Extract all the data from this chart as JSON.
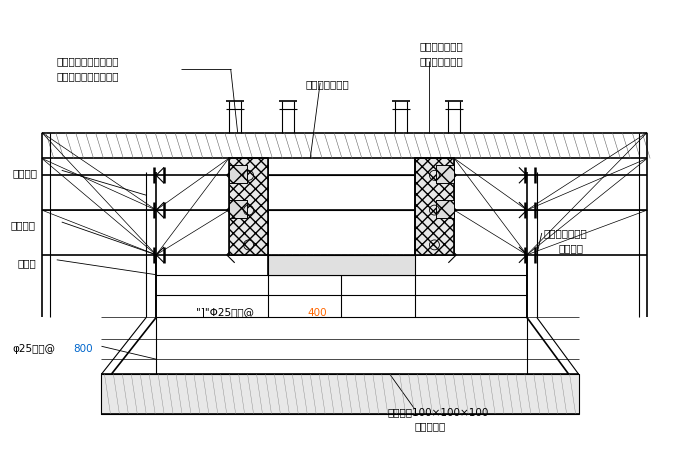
{
  "bg_color": "#ffffff",
  "line_color": "#000000",
  "fig_w": 6.89,
  "fig_h": 4.54,
  "dpi": 100,
  "labels": {
    "top_left_1": "加焊斜撑筋沿吊模周边",
    "top_left_2": "钢筋网交角节点均点焊",
    "top_mid": "成型框模、带底",
    "top_right_1": "混凝土浇筑至混",
    "top_right_2": "凝土管置换拔出",
    "left_1": "交角焊牢",
    "left_2": "螺纹钢筋",
    "left_3": "止水片",
    "right_1": "胶合板上开气孔",
    "right_2": "以便振捣",
    "bot_left_1": "φ25撑筋@",
    "bot_left_num": "800",
    "bot_right_1": "撑筋垫块100×100×100",
    "bot_right_2": "间距同撑筋",
    "inner_1": "\"]\"Φ25撑筋@",
    "inner_num": "400"
  },
  "colors": {
    "orange": "#ff6600",
    "blue": "#0066cc",
    "black": "#000000",
    "hatch_bg": "#e8e8e8",
    "slab_bg": "#f0f0f0"
  }
}
